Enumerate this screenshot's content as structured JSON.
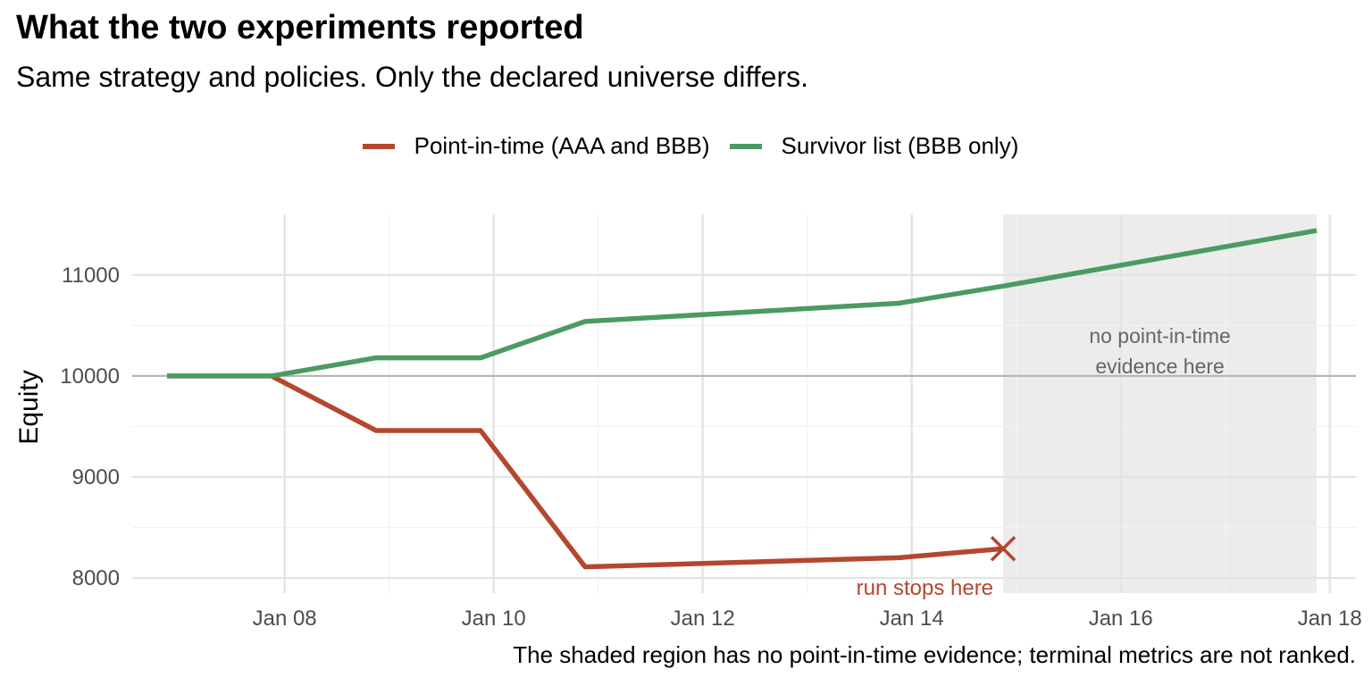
{
  "chart_data": {
    "type": "line",
    "title": "What the two experiments reported",
    "subtitle": "Same strategy and policies. Only the declared universe differs.",
    "xlabel": "",
    "ylabel": "Equity",
    "caption": "The shaded region has no point-in-time evidence; terminal metrics are not ranked.",
    "legend_position": "top",
    "grid": true,
    "x_type": "date",
    "xlim": [
      "2024-01-06T13:00",
      "2024-01-18T06:00"
    ],
    "ylim": [
      7850,
      11600
    ],
    "x_ticks": [
      {
        "date": "2024-01-08",
        "label": "Jan 08"
      },
      {
        "date": "2024-01-10",
        "label": "Jan 10"
      },
      {
        "date": "2024-01-12",
        "label": "Jan 12"
      },
      {
        "date": "2024-01-14",
        "label": "Jan 14"
      },
      {
        "date": "2024-01-16",
        "label": "Jan 16"
      },
      {
        "date": "2024-01-18",
        "label": "Jan 18"
      }
    ],
    "y_ticks": [
      8000,
      9000,
      10000,
      11000
    ],
    "reference_line": 10000,
    "series": [
      {
        "name": "Point-in-time (AAA and BBB)",
        "color": "#b5462f",
        "x": [
          "2024-01-06T21:00",
          "2024-01-07T21:00",
          "2024-01-08T21:00",
          "2024-01-09T21:00",
          "2024-01-10T21:00",
          "2024-01-13T21:00",
          "2024-01-14T21:00"
        ],
        "values": [
          10000,
          10000,
          9460,
          9460,
          8110,
          8200,
          8290
        ],
        "end_marker": "x"
      },
      {
        "name": "Survivor list (BBB only)",
        "color": "#4c9a63",
        "x": [
          "2024-01-06T21:00",
          "2024-01-07T21:00",
          "2024-01-08T21:00",
          "2024-01-09T21:00",
          "2024-01-10T21:00",
          "2024-01-13T21:00",
          "2024-01-14T21:00",
          "2024-01-17T21:00"
        ],
        "values": [
          10000,
          10000,
          10180,
          10180,
          10540,
          10720,
          10890,
          11440
        ]
      }
    ],
    "shaded_region": {
      "x": [
        "2024-01-14T21:00",
        "2024-01-17T21:00"
      ],
      "color": "#ececec",
      "label": [
        "no point-in-time",
        "evidence here"
      ]
    },
    "annotations": [
      {
        "text": "run stops here",
        "x": "2024-01-14T03:00",
        "y": 7990,
        "color": "#b5462f"
      }
    ]
  }
}
